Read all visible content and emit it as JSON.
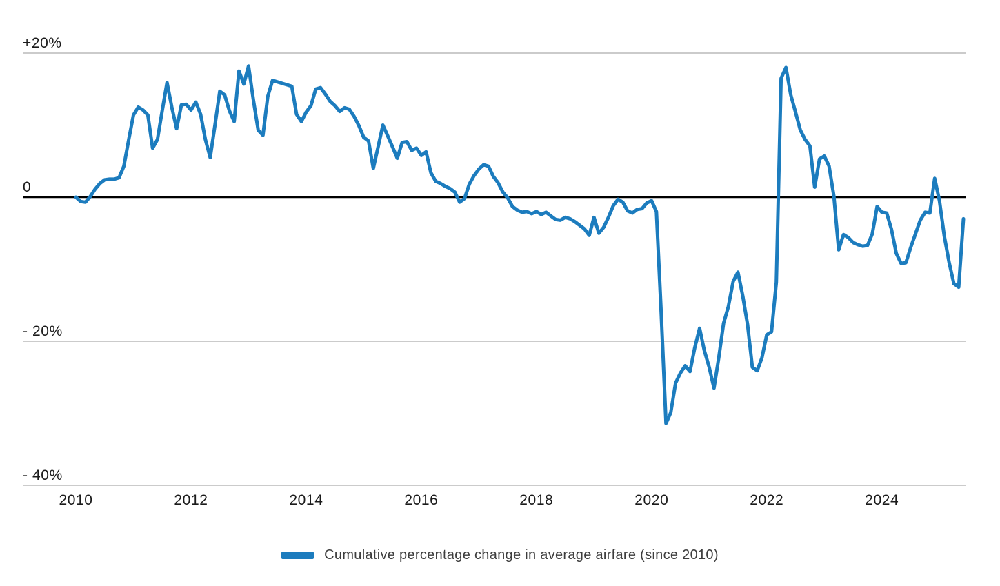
{
  "chart_data": {
    "type": "line",
    "title": "",
    "frequency": "monthly",
    "x_start": "2010-01",
    "x_end": "2025-06",
    "unit": "%",
    "grid": true,
    "legend_position": "bottom-center",
    "ylim": [
      -44,
      24
    ],
    "xlim_years": [
      2010,
      2025.5
    ],
    "line_color": "#1c7cbe",
    "grid_color": "#cbcbcb",
    "zero_line_color": "#000000",
    "text_color": "#1b1b1b",
    "y_ticks": [
      {
        "label": "+20%",
        "value": 20
      },
      {
        "label": "0",
        "value": 0
      },
      {
        "label": "- 20%",
        "value": -20
      },
      {
        "label": "- 40%",
        "value": -40
      }
    ],
    "x_ticks": [
      {
        "label": "2010",
        "year": 2010
      },
      {
        "label": "2012",
        "year": 2012
      },
      {
        "label": "2014",
        "year": 2014
      },
      {
        "label": "2016",
        "year": 2016
      },
      {
        "label": "2018",
        "year": 2018
      },
      {
        "label": "2020",
        "year": 2020
      },
      {
        "label": "2022",
        "year": 2022
      },
      {
        "label": "2024",
        "year": 2024
      }
    ],
    "series": [
      {
        "name": "Cumulative percentage change in average airfare (since 2010)",
        "values": [
          0.0,
          -0.6,
          -0.7,
          0.1,
          1.1,
          1.9,
          2.4,
          2.5,
          2.5,
          2.7,
          4.3,
          7.9,
          11.4,
          12.5,
          12.1,
          11.4,
          6.8,
          8.0,
          12.0,
          15.9,
          12.5,
          9.5,
          12.8,
          12.9,
          12.1,
          13.2,
          11.5,
          8.0,
          5.5,
          10.0,
          14.7,
          14.2,
          12.0,
          10.5,
          17.5,
          15.7,
          18.2,
          13.5,
          9.3,
          8.6,
          14.0,
          16.2,
          16.0,
          15.8,
          15.6,
          15.4,
          11.5,
          10.5,
          11.8,
          12.7,
          15.0,
          15.2,
          14.3,
          13.3,
          12.7,
          11.9,
          12.4,
          12.2,
          11.2,
          9.9,
          8.3,
          7.8,
          4.0,
          7.0,
          10.0,
          8.5,
          7.0,
          5.4,
          7.6,
          7.7,
          6.5,
          6.8,
          5.8,
          6.3,
          3.4,
          2.2,
          1.9,
          1.5,
          1.2,
          0.7,
          -0.7,
          -0.2,
          1.8,
          3.0,
          3.9,
          4.5,
          4.3,
          2.9,
          2.0,
          0.7,
          -0.1,
          -1.3,
          -1.8,
          -2.1,
          -2.0,
          -2.3,
          -2.0,
          -2.4,
          -2.1,
          -2.6,
          -3.1,
          -3.2,
          -2.8,
          -3.0,
          -3.4,
          -3.9,
          -4.4,
          -5.3,
          -2.8,
          -5.0,
          -4.2,
          -2.8,
          -1.2,
          -0.3,
          -0.7,
          -1.9,
          -2.2,
          -1.7,
          -1.6,
          -0.8,
          -0.5,
          -2.0,
          -16.0,
          -31.4,
          -29.9,
          -25.8,
          -24.4,
          -23.4,
          -24.2,
          -20.9,
          -18.2,
          -21.3,
          -23.6,
          -26.5,
          -22.3,
          -17.5,
          -15.2,
          -11.7,
          -10.4,
          -13.7,
          -17.7,
          -23.6,
          -24.1,
          -22.3,
          -19.1,
          -18.7,
          -11.8,
          16.5,
          18.0,
          14.2,
          11.8,
          9.3,
          8.0,
          7.1,
          1.4,
          5.3,
          5.7,
          4.3,
          0.1,
          -7.3,
          -5.2,
          -5.6,
          -6.3,
          -6.6,
          -6.8,
          -6.7,
          -5.1,
          -1.3,
          -2.1,
          -2.2,
          -4.5,
          -7.8,
          -9.2,
          -9.1,
          -7.0,
          -5.1,
          -3.2,
          -2.1,
          -2.2,
          2.6,
          -0.5,
          -5.4,
          -9.0,
          -12.0,
          -12.5,
          -3.0
        ]
      }
    ]
  },
  "legend": {
    "swatch_color": "#1c7cbe"
  }
}
